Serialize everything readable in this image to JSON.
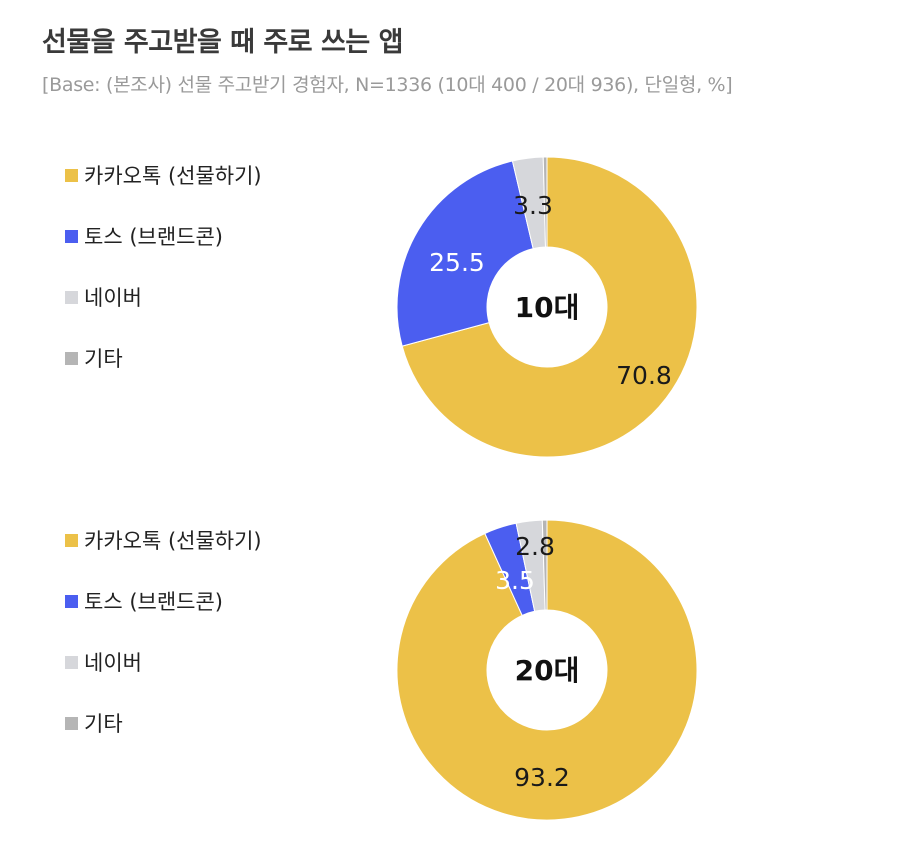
{
  "header": {
    "title": "선물을 주고받을 때 주로 쓰는 앱",
    "subtitle": "[Base: (본조사) 선물 주고받기 경험자, N=1336 (10대 400 / 20대 936), 단일형, %]"
  },
  "legend": {
    "items": [
      {
        "label": "카카오톡 (선물하기)",
        "color": "#ECC148"
      },
      {
        "label": "토스 (브랜드콘)",
        "color": "#4B5EF0"
      },
      {
        "label": "네이버",
        "color": "#D6D7DB"
      },
      {
        "label": "기타",
        "color": "#B5B5B5"
      }
    ]
  },
  "chart_data": [
    {
      "type": "pie",
      "center_label": "10대",
      "slices": [
        {
          "name": "카카오톡 (선물하기)",
          "value": 70.8,
          "label": "70.8",
          "color": "#ECC148",
          "label_color": "#1a1a1a"
        },
        {
          "name": "토스 (브랜드콘)",
          "value": 25.5,
          "label": "25.5",
          "color": "#4B5EF0",
          "label_color": "#ffffff"
        },
        {
          "name": "네이버",
          "value": 3.3,
          "label": "3.3",
          "color": "#D6D7DB",
          "label_color": "#1a1a1a"
        },
        {
          "name": "기타",
          "value": 0.4,
          "label": "",
          "color": "#B5B5B5",
          "label_color": "#1a1a1a"
        }
      ]
    },
    {
      "type": "pie",
      "center_label": "20대",
      "slices": [
        {
          "name": "카카오톡 (선물하기)",
          "value": 93.2,
          "label": "93.2",
          "color": "#ECC148",
          "label_color": "#1a1a1a"
        },
        {
          "name": "토스 (브랜드콘)",
          "value": 3.5,
          "label": "3.5",
          "color": "#4B5EF0",
          "label_color": "#ffffff"
        },
        {
          "name": "네이버",
          "value": 2.8,
          "label": "2.8",
          "color": "#D6D7DB",
          "label_color": "#1a1a1a"
        },
        {
          "name": "기타",
          "value": 0.5,
          "label": "",
          "color": "#B5B5B5",
          "label_color": "#1a1a1a"
        }
      ]
    }
  ]
}
